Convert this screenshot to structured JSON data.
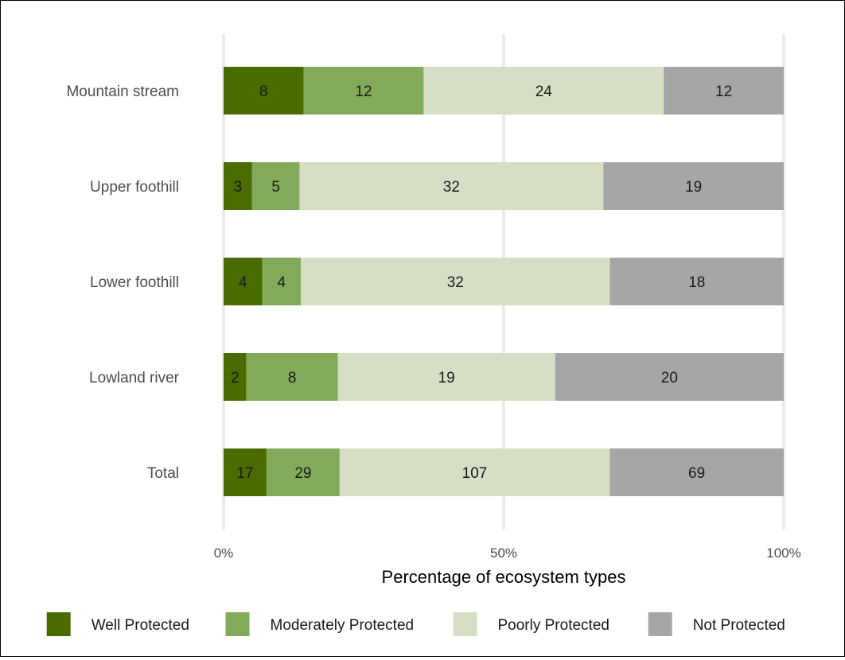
{
  "chart_data": {
    "type": "bar",
    "orientation": "horizontal",
    "stacked": "percent",
    "categories": [
      "Mountain stream",
      "Upper foothill",
      "Lower foothill",
      "Lowland river",
      "Total"
    ],
    "series": [
      {
        "name": "Well Protected",
        "color": "#4a6b00",
        "values": [
          8,
          3,
          4,
          2,
          17
        ]
      },
      {
        "name": "Moderately Protected",
        "color": "#82aa5a",
        "values": [
          12,
          5,
          4,
          8,
          29
        ]
      },
      {
        "name": "Poorly Protected",
        "color": "#d6dfc5",
        "values": [
          24,
          32,
          32,
          19,
          107
        ]
      },
      {
        "name": "Not Protected",
        "color": "#a6a6a6",
        "values": [
          12,
          19,
          18,
          20,
          69
        ]
      }
    ],
    "xlabel": "Percentage of ecosystem types",
    "ylabel": "",
    "x_ticks": [
      "0%",
      "50%",
      "100%"
    ],
    "xlim": [
      0,
      100
    ],
    "grid": "vertical-major",
    "legend": "bottom"
  }
}
